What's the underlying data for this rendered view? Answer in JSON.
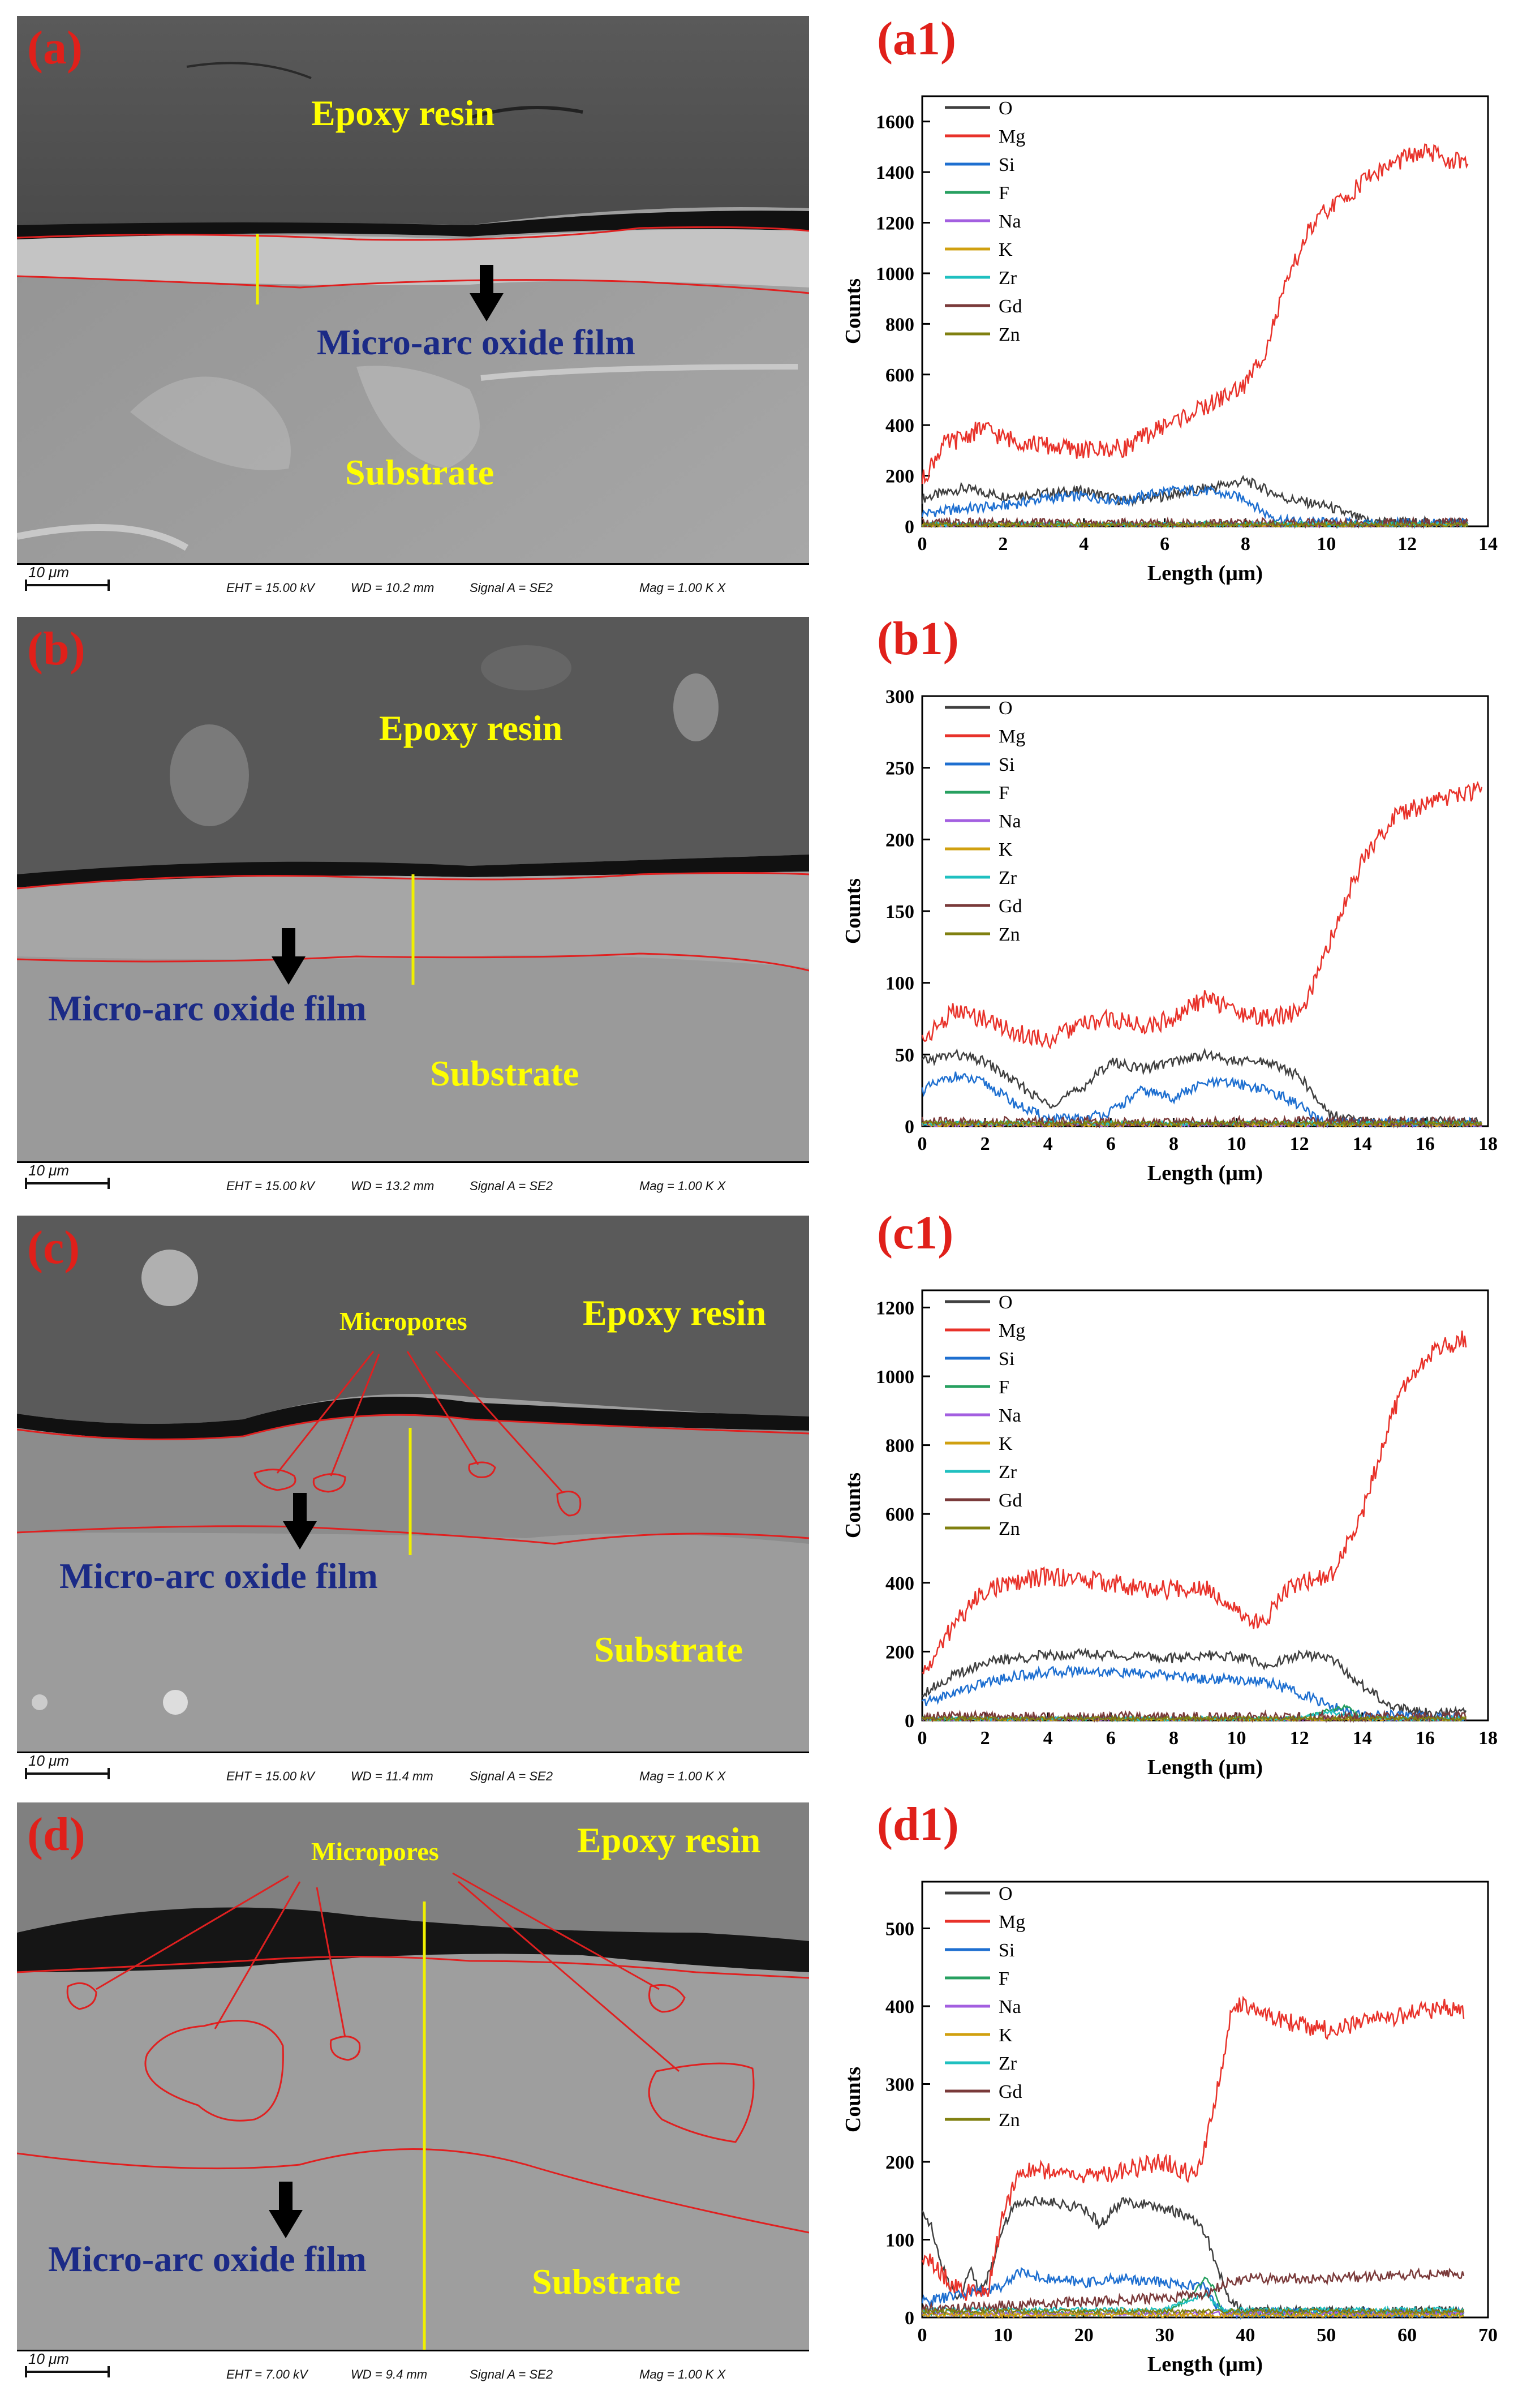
{
  "sem_panels": [
    {
      "id": "a",
      "letter": "(a)",
      "labels": {
        "resin": "Epoxy resin",
        "film": "Micro-arc oxide film",
        "substrate": "Substrate"
      },
      "scale": "10 μm",
      "info": {
        "eht": "EHT = 15.00 kV",
        "wd": "WD = 10.2 mm",
        "signal": "Signal A = SE2",
        "mag": "Mag =   1.00 K X"
      }
    },
    {
      "id": "b",
      "letter": "(b)",
      "labels": {
        "resin": "Epoxy resin",
        "film": "Micro-arc oxide film",
        "substrate": "Substrate"
      },
      "scale": "10 μm",
      "info": {
        "eht": "EHT = 15.00 kV",
        "wd": "WD = 13.2 mm",
        "signal": "Signal A = SE2",
        "mag": "Mag =   1.00 K X"
      }
    },
    {
      "id": "c",
      "letter": "(c)",
      "labels": {
        "resin": "Epoxy resin",
        "film": "Micro-arc oxide film",
        "substrate": "Substrate",
        "micropores": "Micropores"
      },
      "scale": "10 μm",
      "info": {
        "eht": "EHT = 15.00 kV",
        "wd": "WD = 11.4 mm",
        "signal": "Signal A = SE2",
        "mag": "Mag =   1.00 K X"
      }
    },
    {
      "id": "d",
      "letter": "(d)",
      "labels": {
        "resin": "Epoxy resin",
        "film": "Micro-arc oxide film",
        "substrate": "Substrate",
        "micropores": "Micropores"
      },
      "scale": "10 μm",
      "info": {
        "eht": "EHT = 7.00 kV",
        "wd": "WD = 9.4 mm",
        "signal": "Signal A = SE2",
        "mag": "Mag =   1.00 K X"
      }
    }
  ],
  "colors": {
    "O": "#404040",
    "Mg": "#e8322a",
    "Si": "#1e6fd0",
    "F": "#27a060",
    "Na": "#a35fe0",
    "K": "#d0a010",
    "Zr": "#20c0c0",
    "Gd": "#7a3a3a",
    "Zn": "#808010"
  },
  "chart_data": [
    {
      "id": "a1",
      "letter": "(a1)",
      "type": "line",
      "xlabel": "Length (μm)",
      "ylabel": "Counts",
      "xlim": [
        0,
        14
      ],
      "ylim": [
        0,
        1700
      ],
      "xticks": [
        0,
        2,
        4,
        6,
        8,
        10,
        12,
        14
      ],
      "yticks": [
        0,
        200,
        400,
        600,
        800,
        1000,
        1200,
        1400,
        1600
      ],
      "legend": [
        "O",
        "Mg",
        "Si",
        "F",
        "Na",
        "K",
        "Zr",
        "Gd",
        "Zn"
      ],
      "series": [
        {
          "name": "O",
          "x": [
            0,
            1,
            2,
            3,
            4,
            5,
            6,
            7,
            8,
            9,
            10,
            11,
            12,
            13.5
          ],
          "y": [
            110,
            150,
            120,
            130,
            140,
            100,
            120,
            150,
            180,
            110,
            80,
            20,
            15,
            15
          ]
        },
        {
          "name": "Mg",
          "x": [
            0,
            0.5,
            1,
            1.5,
            2,
            3,
            4,
            5,
            6,
            7,
            8,
            8.5,
            9,
            9.5,
            10,
            10.5,
            11,
            11.5,
            12,
            12.5,
            13,
            13.5
          ],
          "y": [
            180,
            320,
            350,
            390,
            350,
            320,
            300,
            310,
            400,
            470,
            560,
            700,
            950,
            1150,
            1250,
            1300,
            1380,
            1420,
            1460,
            1480,
            1450,
            1430
          ]
        },
        {
          "name": "Si",
          "x": [
            0,
            1,
            2,
            3,
            4,
            5,
            6,
            7,
            8,
            8.5,
            9,
            10,
            11,
            13.5
          ],
          "y": [
            50,
            70,
            80,
            110,
            120,
            100,
            140,
            140,
            110,
            50,
            20,
            15,
            10,
            10
          ]
        },
        {
          "name": "F",
          "x": [
            0,
            13.5
          ],
          "y": [
            10,
            10
          ]
        },
        {
          "name": "Na",
          "x": [
            0,
            13.5
          ],
          "y": [
            5,
            5
          ]
        },
        {
          "name": "K",
          "x": [
            0,
            13.5
          ],
          "y": [
            5,
            5
          ]
        },
        {
          "name": "Zr",
          "x": [
            0,
            13.5
          ],
          "y": [
            8,
            8
          ]
        },
        {
          "name": "Gd",
          "x": [
            0,
            13.5
          ],
          "y": [
            12,
            12
          ]
        },
        {
          "name": "Zn",
          "x": [
            0,
            13.5
          ],
          "y": [
            6,
            6
          ]
        }
      ]
    },
    {
      "id": "b1",
      "letter": "(b1)",
      "type": "line",
      "xlabel": "Length (μm)",
      "ylabel": "Counts",
      "xlim": [
        0,
        18
      ],
      "ylim": [
        0,
        300
      ],
      "xticks": [
        0,
        2,
        4,
        6,
        8,
        10,
        12,
        14,
        16,
        18
      ],
      "yticks": [
        0,
        50,
        100,
        150,
        200,
        250,
        300
      ],
      "legend": [
        "O",
        "Mg",
        "Si",
        "F",
        "Na",
        "K",
        "Zr",
        "Gd",
        "Zn"
      ],
      "series": [
        {
          "name": "O",
          "x": [
            0,
            1,
            2,
            3,
            4,
            5,
            6,
            7,
            8,
            9,
            10,
            11,
            12,
            12.5,
            13,
            14,
            17.8
          ],
          "y": [
            45,
            50,
            45,
            30,
            15,
            25,
            45,
            40,
            45,
            50,
            45,
            45,
            35,
            20,
            8,
            3,
            3
          ]
        },
        {
          "name": "Mg",
          "x": [
            0,
            1,
            2,
            3,
            4,
            5,
            6,
            7,
            8,
            9,
            10,
            11,
            12,
            12.5,
            13,
            13.5,
            14,
            14.5,
            15,
            16,
            17,
            17.8
          ],
          "y": [
            60,
            80,
            75,
            65,
            60,
            70,
            75,
            70,
            75,
            90,
            80,
            75,
            80,
            100,
            130,
            160,
            185,
            200,
            215,
            225,
            230,
            235
          ]
        },
        {
          "name": "Si",
          "x": [
            0,
            1,
            2,
            3,
            4,
            5,
            6,
            7,
            8,
            9,
            10,
            11,
            12,
            12.5,
            13,
            17.8
          ],
          "y": [
            25,
            35,
            30,
            15,
            5,
            5,
            10,
            25,
            20,
            30,
            30,
            25,
            15,
            5,
            2,
            2
          ]
        },
        {
          "name": "F",
          "x": [
            0,
            17.8
          ],
          "y": [
            2,
            2
          ]
        },
        {
          "name": "Na",
          "x": [
            0,
            17.8
          ],
          "y": [
            1,
            1
          ]
        },
        {
          "name": "K",
          "x": [
            0,
            17.8
          ],
          "y": [
            1,
            1
          ]
        },
        {
          "name": "Zr",
          "x": [
            0,
            17.8
          ],
          "y": [
            2,
            2
          ]
        },
        {
          "name": "Gd",
          "x": [
            0,
            17.8
          ],
          "y": [
            3,
            3
          ]
        },
        {
          "name": "Zn",
          "x": [
            0,
            17.8
          ],
          "y": [
            2,
            2
          ]
        }
      ]
    },
    {
      "id": "c1",
      "letter": "(c1)",
      "type": "line",
      "xlabel": "Length (μm)",
      "ylabel": "Counts",
      "xlim": [
        0,
        18
      ],
      "ylim": [
        0,
        1250
      ],
      "xticks": [
        0,
        2,
        4,
        6,
        8,
        10,
        12,
        14,
        16,
        18
      ],
      "yticks": [
        0,
        200,
        400,
        600,
        800,
        1000,
        1200
      ],
      "legend": [
        "O",
        "Mg",
        "Si",
        "F",
        "Na",
        "K",
        "Zr",
        "Gd",
        "Zn"
      ],
      "series": [
        {
          "name": "O",
          "x": [
            0,
            1,
            2,
            3,
            4,
            5,
            6,
            7,
            8,
            9,
            10,
            11,
            12,
            13,
            14,
            15,
            16,
            17.3
          ],
          "y": [
            80,
            130,
            170,
            180,
            190,
            195,
            190,
            185,
            180,
            190,
            185,
            160,
            190,
            180,
            100,
            40,
            25,
            20
          ]
        },
        {
          "name": "Mg",
          "x": [
            0,
            0.5,
            1,
            1.5,
            2,
            3,
            4,
            5,
            6,
            7,
            8,
            9,
            10,
            10.5,
            11,
            11.5,
            12,
            13,
            14,
            14.5,
            15,
            15.5,
            16,
            16.5,
            17,
            17.3
          ],
          "y": [
            130,
            200,
            280,
            330,
            380,
            400,
            420,
            410,
            400,
            380,
            380,
            390,
            330,
            280,
            300,
            380,
            400,
            420,
            600,
            750,
            900,
            1000,
            1050,
            1080,
            1100,
            1110
          ]
        },
        {
          "name": "Si",
          "x": [
            0,
            1,
            2,
            3,
            4,
            5,
            6,
            7,
            8,
            9,
            10,
            11,
            12,
            13,
            14,
            17.3
          ],
          "y": [
            50,
            80,
            110,
            130,
            140,
            145,
            140,
            135,
            130,
            120,
            120,
            110,
            80,
            40,
            15,
            10
          ]
        },
        {
          "name": "F",
          "x": [
            0,
            12,
            13,
            13.5,
            14,
            17.3
          ],
          "y": [
            5,
            5,
            30,
            40,
            5,
            5
          ]
        },
        {
          "name": "Na",
          "x": [
            0,
            17.3
          ],
          "y": [
            3,
            3
          ]
        },
        {
          "name": "K",
          "x": [
            0,
            17.3
          ],
          "y": [
            3,
            3
          ]
        },
        {
          "name": "Zr",
          "x": [
            0,
            12,
            13,
            14,
            17.3
          ],
          "y": [
            5,
            5,
            25,
            5,
            5
          ]
        },
        {
          "name": "Gd",
          "x": [
            0,
            17.3
          ],
          "y": [
            10,
            10
          ]
        },
        {
          "name": "Zn",
          "x": [
            0,
            17.3
          ],
          "y": [
            5,
            5
          ]
        }
      ]
    },
    {
      "id": "d1",
      "letter": "(d1)",
      "type": "line",
      "xlabel": "Length (μm)",
      "ylabel": "Counts",
      "xlim": [
        0,
        70
      ],
      "ylim": [
        0,
        560
      ],
      "xticks": [
        0,
        10,
        20,
        30,
        40,
        50,
        60,
        70
      ],
      "yticks": [
        0,
        100,
        200,
        300,
        400,
        500
      ],
      "legend": [
        "O",
        "Mg",
        "Si",
        "F",
        "Na",
        "K",
        "Zr",
        "Gd",
        "Zn"
      ],
      "series": [
        {
          "name": "O",
          "x": [
            0,
            1,
            2,
            3,
            4,
            5,
            6,
            7,
            8,
            9,
            10,
            12,
            15,
            20,
            22,
            25,
            30,
            33,
            35,
            36,
            38,
            40,
            45,
            50,
            55,
            60,
            65,
            67
          ],
          "y": [
            140,
            120,
            80,
            50,
            30,
            30,
            70,
            30,
            50,
            80,
            120,
            150,
            150,
            140,
            120,
            150,
            140,
            130,
            110,
            80,
            20,
            10,
            8,
            8,
            8,
            8,
            8,
            8
          ]
        },
        {
          "name": "Mg",
          "x": [
            0,
            2,
            4,
            6,
            8,
            10,
            12,
            15,
            20,
            25,
            30,
            34,
            36,
            37,
            38,
            39,
            40,
            45,
            50,
            55,
            60,
            65,
            67
          ],
          "y": [
            80,
            60,
            40,
            30,
            30,
            130,
            190,
            190,
            180,
            190,
            200,
            180,
            260,
            320,
            380,
            400,
            400,
            380,
            370,
            380,
            390,
            400,
            390
          ]
        },
        {
          "name": "Si",
          "x": [
            0,
            5,
            10,
            12,
            15,
            20,
            25,
            30,
            35,
            36,
            37,
            38,
            40,
            67
          ],
          "y": [
            20,
            30,
            40,
            60,
            50,
            45,
            50,
            45,
            40,
            20,
            10,
            5,
            5,
            5
          ]
        },
        {
          "name": "F",
          "x": [
            0,
            30,
            33,
            35,
            36,
            37,
            40,
            67
          ],
          "y": [
            5,
            5,
            25,
            50,
            40,
            10,
            5,
            5
          ]
        },
        {
          "name": "Na",
          "x": [
            0,
            67
          ],
          "y": [
            5,
            5
          ]
        },
        {
          "name": "K",
          "x": [
            0,
            67
          ],
          "y": [
            3,
            3
          ]
        },
        {
          "name": "Zr",
          "x": [
            0,
            30,
            35,
            37,
            40,
            67
          ],
          "y": [
            10,
            10,
            30,
            10,
            10,
            10
          ]
        },
        {
          "name": "Gd",
          "x": [
            0,
            10,
            20,
            30,
            35,
            38,
            40,
            50,
            60,
            67
          ],
          "y": [
            10,
            15,
            20,
            25,
            30,
            45,
            50,
            50,
            55,
            55
          ]
        },
        {
          "name": "Zn",
          "x": [
            0,
            67
          ],
          "y": [
            8,
            8
          ]
        }
      ]
    }
  ]
}
